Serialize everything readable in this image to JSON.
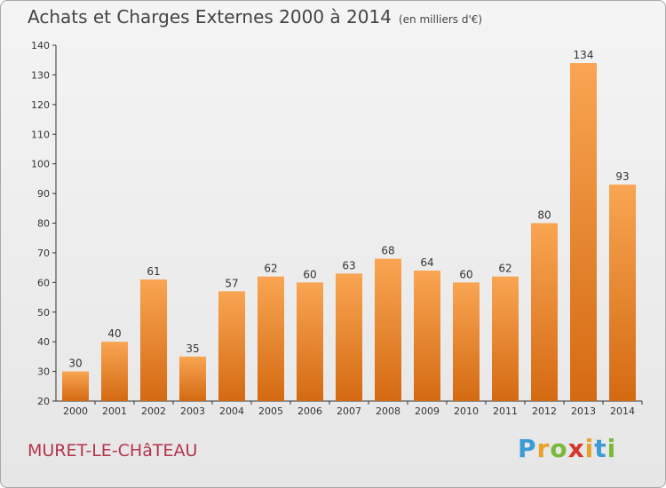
{
  "header": {
    "title": "Achats et Charges Externes 2000 à 2014",
    "unit": "(en milliers d'€)"
  },
  "footer": {
    "city": "MURET-LE-CHâTEAU",
    "logo_letters": [
      "P",
      "r",
      "o",
      "x",
      "i",
      "t",
      "i"
    ],
    "logo_colors": [
      "#3a9bd6",
      "#e8a22a",
      "#7ab83a",
      "#d8362b",
      "#e8a22a",
      "#3a9bd6",
      "#7ab83a"
    ]
  },
  "chart_data": {
    "type": "bar",
    "categories": [
      "2000",
      "2001",
      "2002",
      "2003",
      "2004",
      "2005",
      "2006",
      "2007",
      "2008",
      "2009",
      "2010",
      "2011",
      "2012",
      "2013",
      "2014"
    ],
    "values": [
      30,
      40,
      61,
      35,
      57,
      62,
      60,
      63,
      68,
      64,
      60,
      62,
      80,
      134,
      93
    ],
    "ylim": [
      20,
      140
    ],
    "yticks": [
      20,
      30,
      40,
      50,
      60,
      70,
      80,
      90,
      100,
      110,
      120,
      130,
      140
    ],
    "grid": false,
    "bar_color_top": "#f9a552",
    "bar_color_bottom": "#d46a12",
    "axis_color": "#333333"
  }
}
